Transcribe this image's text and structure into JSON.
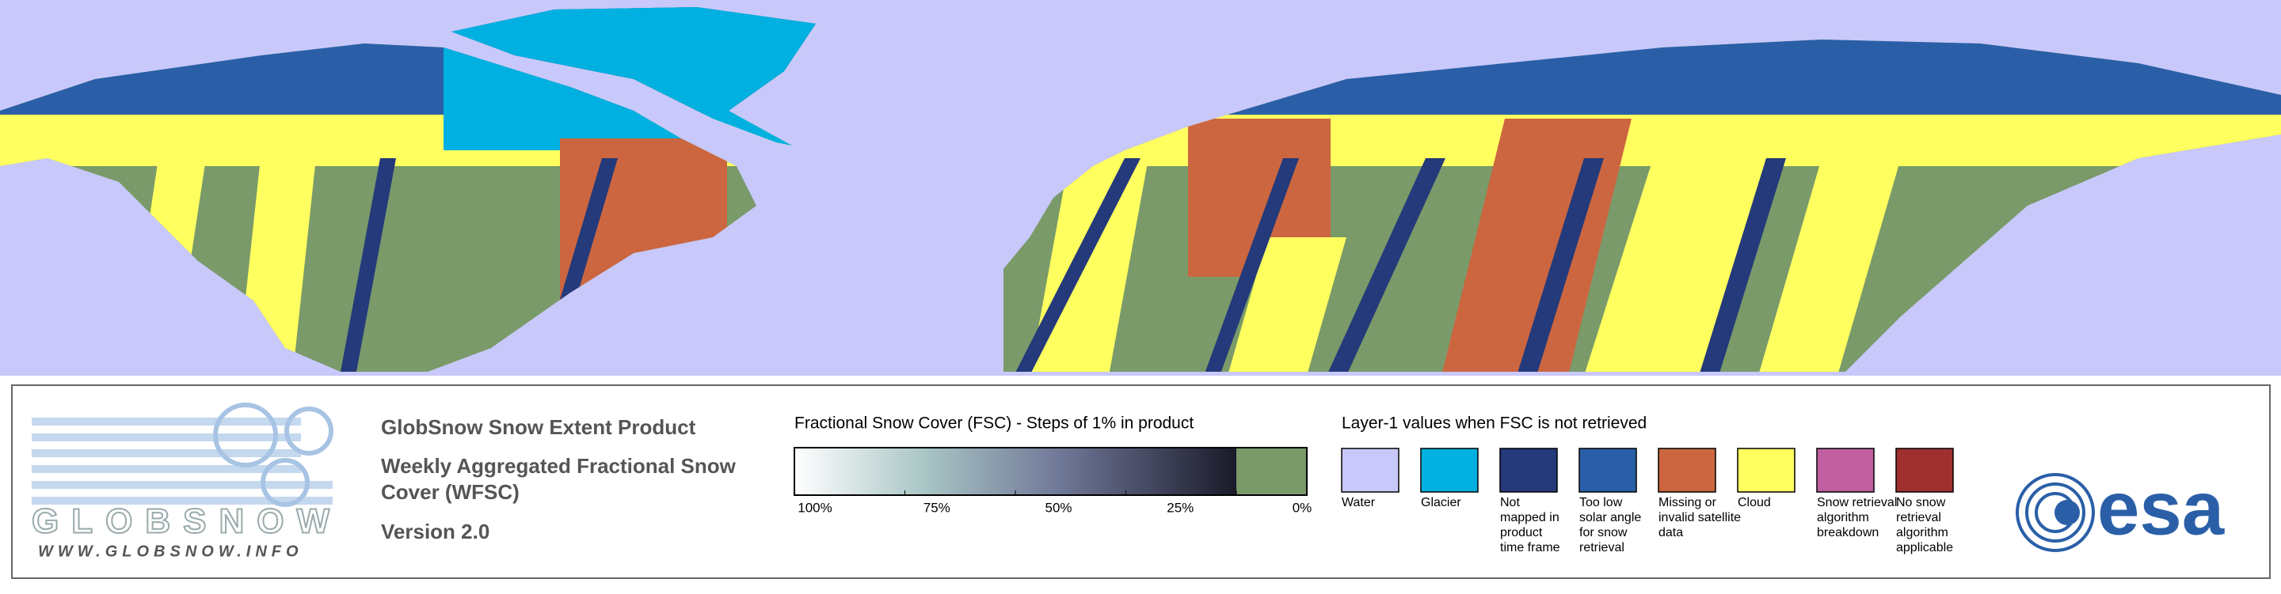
{
  "logo": {
    "wordmark": "GLOBSNOW",
    "url": "WWW.GLOBSNOW.INFO"
  },
  "header": {
    "title": "GlobSnow Snow Extent Product",
    "subtitle_lines": [
      "Weekly Aggregated Fractional Snow",
      "Cover (WFSC)"
    ],
    "version": "Version 2.0"
  },
  "colorbar": {
    "title": "Fractional Snow Cover (FSC) - Steps of 1% in product",
    "tick_labels": [
      "100%",
      "75%",
      "50%",
      "25%",
      "0%"
    ]
  },
  "layer1": {
    "title": "Layer-1 values when FSC is not retrieved",
    "items": [
      {
        "color": "#c8c8fa",
        "lines": [
          "Water"
        ]
      },
      {
        "color": "#00b0e0",
        "lines": [
          "Glacier"
        ]
      },
      {
        "color": "#243a7a",
        "lines": [
          "Not",
          "mapped in",
          "product",
          "time frame"
        ]
      },
      {
        "color": "#2a5fa8",
        "lines": [
          "Too low",
          "solar angle",
          "for snow",
          "retrieval"
        ]
      },
      {
        "color": "#cc6640",
        "lines": [
          "Missing or",
          "invalid satellite",
          "data"
        ]
      },
      {
        "color": "#ffff60",
        "lines": [
          "Cloud"
        ]
      },
      {
        "color": "#c060a0",
        "lines": [
          "Snow retrieval",
          "algorithm",
          "breakdown"
        ]
      },
      {
        "color": "#a03030",
        "lines": [
          "No snow",
          "retrieval",
          "algorithm",
          "applicable"
        ]
      }
    ]
  },
  "esa_logo": "esa"
}
